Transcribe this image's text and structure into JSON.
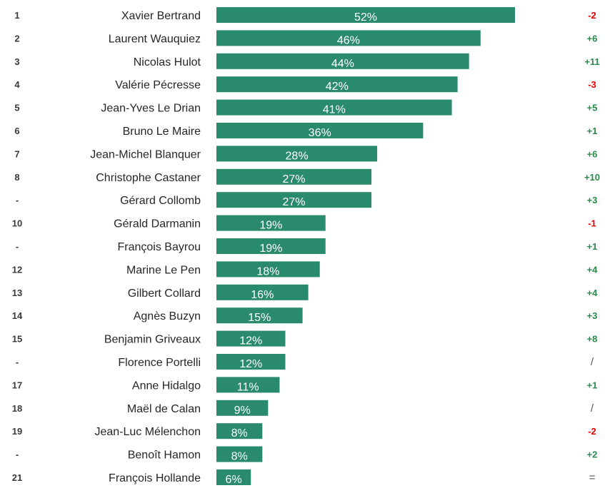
{
  "chart_data": {
    "type": "bar",
    "orientation": "horizontal",
    "value_suffix": "%",
    "colors": {
      "bar": "#2a8a6e",
      "bar_label": "#ffffff",
      "positive_change": "#2a8a4a",
      "negative_change": "#e00000",
      "neutral_change": "#555555"
    },
    "xlim": [
      0,
      55
    ],
    "grid": false,
    "legend": "none",
    "rows": [
      {
        "rank": "1",
        "name": "Xavier Bertrand",
        "value": 52,
        "label": "52%",
        "change": "-2"
      },
      {
        "rank": "2",
        "name": "Laurent Wauquiez",
        "value": 46,
        "label": "46%",
        "change": "+6"
      },
      {
        "rank": "3",
        "name": "Nicolas Hulot",
        "value": 44,
        "label": "44%",
        "change": "+11"
      },
      {
        "rank": "4",
        "name": "Valérie Pécresse",
        "value": 42,
        "label": "42%",
        "change": "-3"
      },
      {
        "rank": "5",
        "name": "Jean-Yves Le Drian",
        "value": 41,
        "label": "41%",
        "change": "+5"
      },
      {
        "rank": "6",
        "name": "Bruno Le Maire",
        "value": 36,
        "label": "36%",
        "change": "+1"
      },
      {
        "rank": "7",
        "name": "Jean-Michel Blanquer",
        "value": 28,
        "label": "28%",
        "change": "+6"
      },
      {
        "rank": "8",
        "name": "Christophe Castaner",
        "value": 27,
        "label": "27%",
        "change": "+10"
      },
      {
        "rank": "-",
        "name": "Gérard Collomb",
        "value": 27,
        "label": "27%",
        "change": "+3"
      },
      {
        "rank": "10",
        "name": "Gérald Darmanin",
        "value": 19,
        "label": "19%",
        "change": "-1"
      },
      {
        "rank": "-",
        "name": "François Bayrou",
        "value": 19,
        "label": "19%",
        "change": "+1"
      },
      {
        "rank": "12",
        "name": "Marine Le Pen",
        "value": 18,
        "label": "18%",
        "change": "+4"
      },
      {
        "rank": "13",
        "name": "Gilbert Collard",
        "value": 16,
        "label": "16%",
        "change": "+4"
      },
      {
        "rank": "14",
        "name": "Agnès Buzyn",
        "value": 15,
        "label": "15%",
        "change": "+3"
      },
      {
        "rank": "15",
        "name": "Benjamin Griveaux",
        "value": 12,
        "label": "12%",
        "change": "+8"
      },
      {
        "rank": "-",
        "name": "Florence Portelli",
        "value": 12,
        "label": "12%",
        "change": "/"
      },
      {
        "rank": "17",
        "name": "Anne Hidalgo",
        "value": 11,
        "label": "11%",
        "change": "+1"
      },
      {
        "rank": "18",
        "name": "Maël de Calan",
        "value": 9,
        "label": "9%",
        "change": "/"
      },
      {
        "rank": "19",
        "name": "Jean-Luc Mélenchon",
        "value": 8,
        "label": "8%",
        "change": "-2"
      },
      {
        "rank": "-",
        "name": "Benoît Hamon",
        "value": 8,
        "label": "8%",
        "change": "+2"
      },
      {
        "rank": "21",
        "name": "François Hollande",
        "value": 6,
        "label": "6%",
        "change": "="
      }
    ]
  }
}
